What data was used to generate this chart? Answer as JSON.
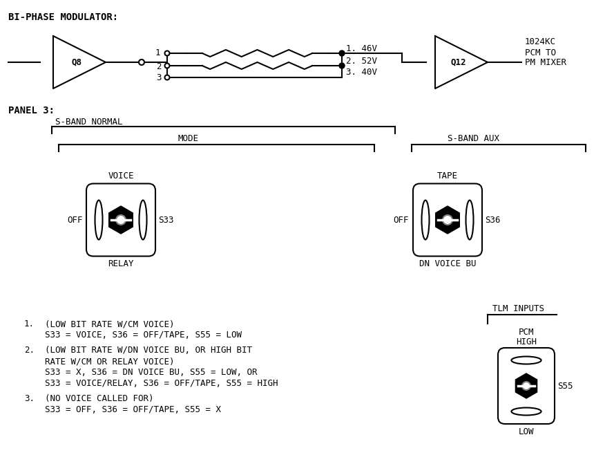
{
  "bg_color": "#ffffff",
  "fg_color": "#000000",
  "title": "BI-PHASE MODULATOR:",
  "panel_label": "PANEL 3:",
  "circuit": {
    "q8_label": "Q8",
    "q12_label": "Q12",
    "voltages": [
      "1. 46V",
      "2. 52V",
      "3. 40V"
    ],
    "node_numbers": [
      "1",
      "2",
      "3"
    ],
    "output_text": "1024KC\nPCM TO\nPM MIXER"
  },
  "panel3": {
    "sband_normal": "S-BAND NORMAL",
    "mode": "MODE",
    "sband_aux": "S-BAND AUX",
    "s33_top": "VOICE",
    "s33_left": "OFF",
    "s33_right": "S33",
    "s33_bottom": "RELAY",
    "s36_top": "TAPE",
    "s36_left": "OFF",
    "s36_right": "S36",
    "s36_bottom": "DN VOICE BU",
    "tlm_label": "TLM INPUTS",
    "pcm_top1": "PCM",
    "pcm_top2": "HIGH",
    "s55_right": "S55",
    "s55_bottom": "LOW"
  },
  "notes": {
    "n1_num": "1.",
    "n1_l1": "(LOW BIT RATE W/CM VOICE)",
    "n1_l2": "S33 = VOICE, S36 = OFF/TAPE, S55 = LOW",
    "n2_num": "2.",
    "n2_l1": "(LOW BIT RATE W/DN VOICE BU, OR HIGH BIT",
    "n2_l2": "RATE W/CM OR RELAY VOICE)",
    "n2_l3": "S33 = X, S36 = DN VOICE BU, S55 = LOW, OR",
    "n2_l4": "S33 = VOICE/RELAY, S36 = OFF/TAPE, S55 = HIGH",
    "n3_num": "3.",
    "n3_l1": "(NO VOICE CALLED FOR)",
    "n3_l2": "S33 = OFF, S36 = OFF/TAPE, S55 = X"
  },
  "lw": 1.5,
  "fs": 9,
  "title_fs": 10
}
